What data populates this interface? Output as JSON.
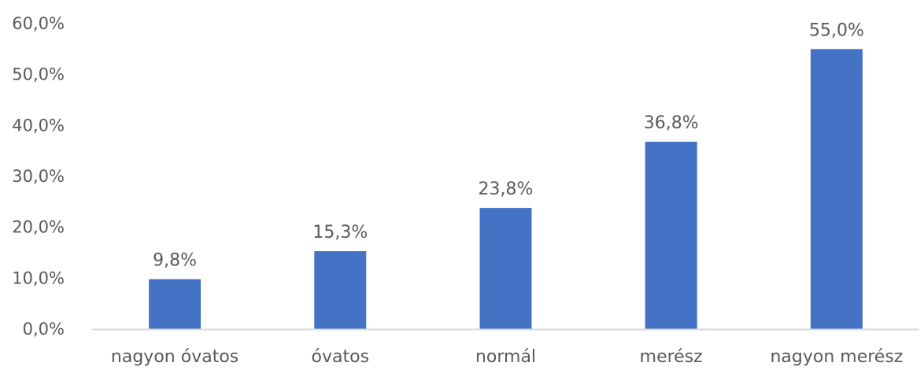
{
  "chart_data": {
    "type": "bar",
    "categories": [
      "nagyon óvatos",
      "óvatos",
      "normál",
      "merész",
      "nagyon merész"
    ],
    "values": [
      9.8,
      15.3,
      23.8,
      36.8,
      55.0
    ],
    "data_labels": [
      "9,8%",
      "15,3%",
      "23,8%",
      "36,8%",
      "55,0%"
    ],
    "ylim": [
      0,
      60
    ],
    "yticks": [
      {
        "value": 0,
        "label": "0,0%"
      },
      {
        "value": 10,
        "label": "10,0%"
      },
      {
        "value": 20,
        "label": "20,0%"
      },
      {
        "value": 30,
        "label": "30,0%"
      },
      {
        "value": 40,
        "label": "40,0%"
      },
      {
        "value": 50,
        "label": "50,0%"
      },
      {
        "value": 60,
        "label": "60,0%"
      }
    ],
    "grid": false,
    "legend": "none",
    "colors": {
      "bar": "#4472C4",
      "axis": "#D9D9D9",
      "text": "#595959"
    }
  }
}
